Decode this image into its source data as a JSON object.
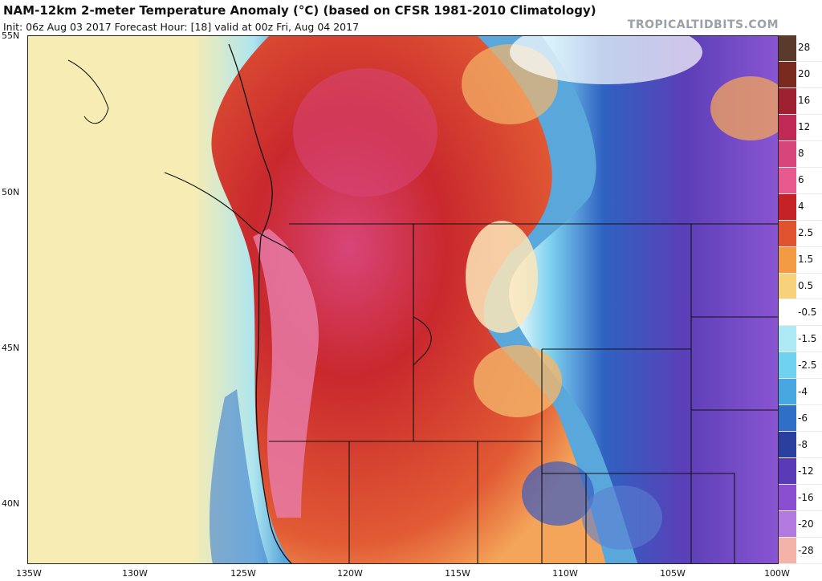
{
  "title": "NAM-12km 2-meter Temperature Anomaly (°C) (based on CFSR 1981-2010 Climatology)",
  "subtitle": "Init: 06z Aug 03 2017   Forecast Hour: [18]   valid at 00z Fri, Aug 04 2017",
  "brand": "TROPICALTIDBITS.COM",
  "lat_labels": [
    "55N",
    "50N",
    "45N",
    "40N"
  ],
  "lon_labels": [
    "135W",
    "130W",
    "125W",
    "120W",
    "115W",
    "110W",
    "105W",
    "100W"
  ],
  "colorbar": {
    "levels": [
      "28",
      "20",
      "16",
      "12",
      "8",
      "6",
      "4",
      "2.5",
      "1.5",
      "0.5",
      "-0.5",
      "-1.5",
      "-2.5",
      "-4",
      "-6",
      "-8",
      "-12",
      "-16",
      "-20",
      "-28"
    ],
    "colors": [
      "#5a3a2a",
      "#7a2a1e",
      "#9e2130",
      "#c02a55",
      "#d8457a",
      "#e85a8e",
      "#c42226",
      "#e0532e",
      "#f39a44",
      "#f7d27a",
      "#ffffff",
      "#aeeaf5",
      "#6fd2ee",
      "#48a6e0",
      "#2f6fc8",
      "#2b3f9e",
      "#5b3ab8",
      "#8a4fd0",
      "#b27adf",
      "#f4b3a8"
    ]
  },
  "map": {
    "variable": "2-meter temperature anomaly",
    "units": "°C",
    "lon_range": [
      -135,
      -100
    ],
    "lat_range": [
      38,
      55
    ],
    "colors": {
      "ocean_far": "#f7ecb3",
      "ocean_near": "#8fd8ea",
      "coast_cool": "#5aa7dc",
      "hot_core": "#c9282d",
      "hot_edge": "#e25b34",
      "very_hot": "#d8457a",
      "warm": "#f4a55a",
      "neutral": "#ffffff",
      "cool": "#6fcbee",
      "cold": "#2f5fc0",
      "very_cold": "#6b3fc2",
      "purple": "#9a5fd6"
    }
  }
}
